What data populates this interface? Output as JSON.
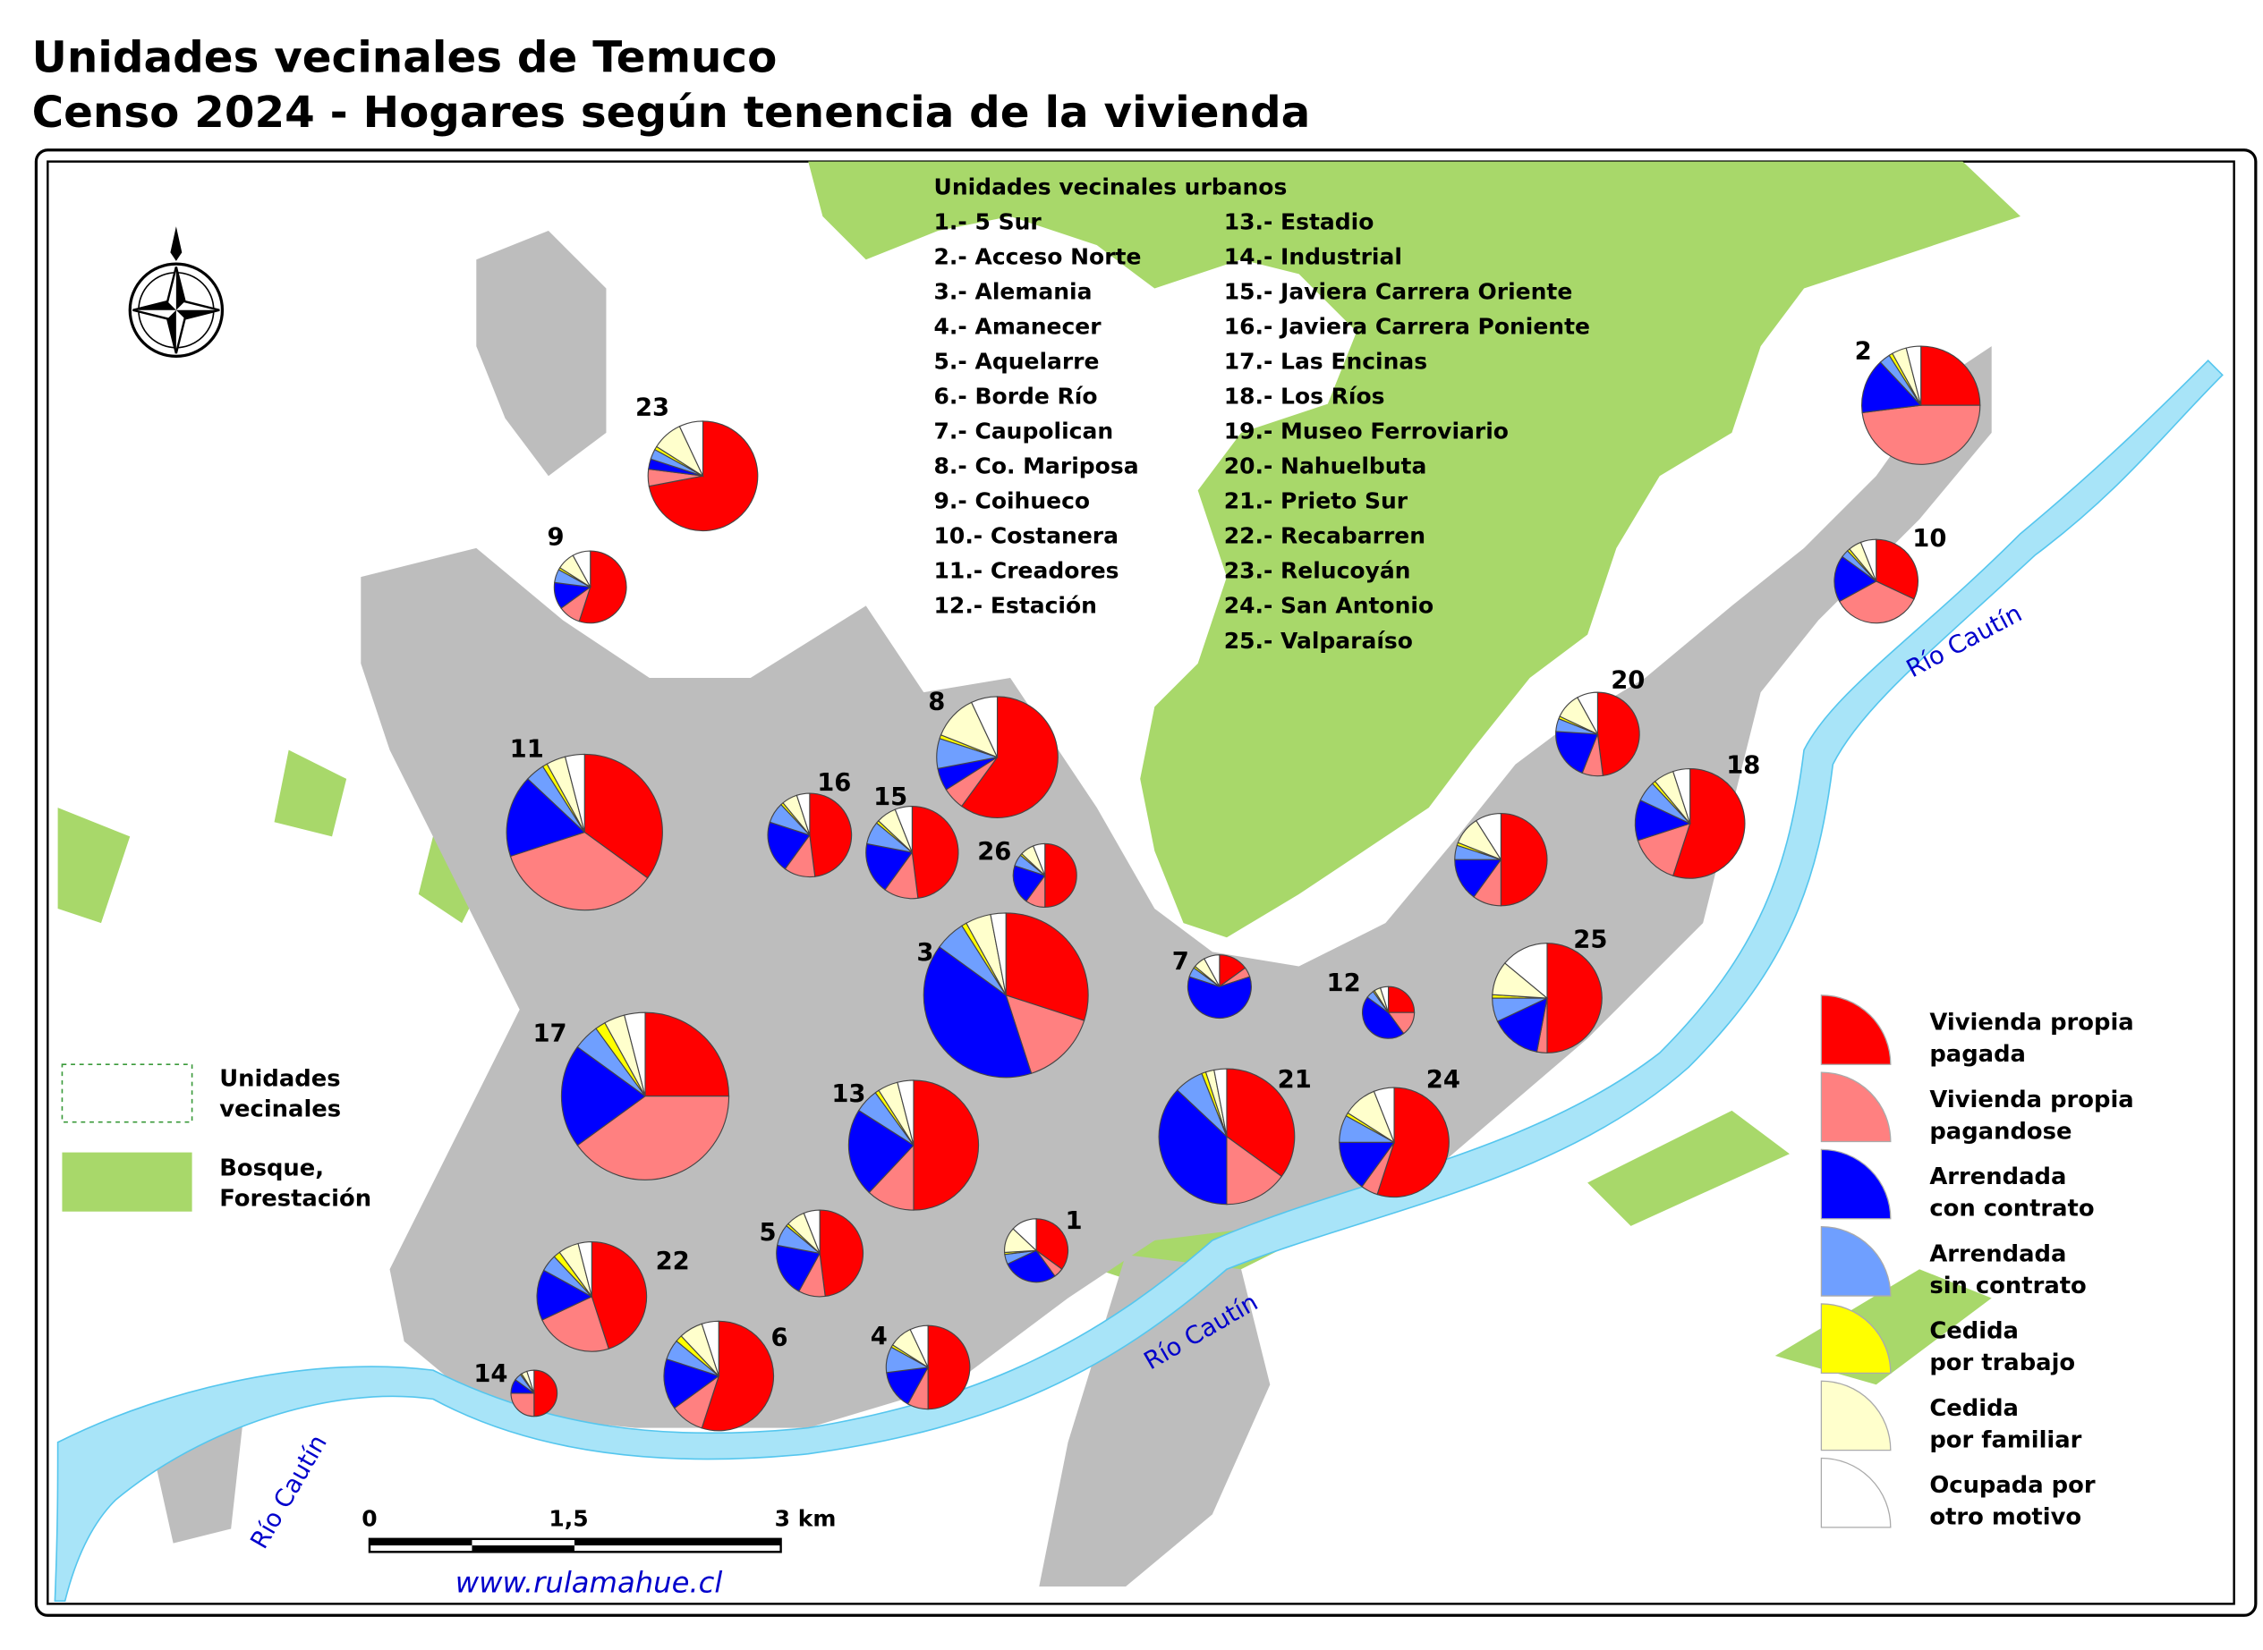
{
  "header": {
    "title_lines": [
      "Unidades vecinales de Temuco",
      "Censo 2024 - Hogares según tenencia de la vivienda"
    ]
  },
  "unit_list": {
    "heading": "Unidades vecinales urbanos",
    "items": [
      "1.-  5 Sur",
      "2.-  Acceso Norte",
      "3.-  Alemania",
      "4.-  Amanecer",
      "5.-  Aquelarre",
      "6.-  Borde Río",
      "7.-  Caupolican",
      "8.-  Co. Mariposa",
      "9.-  Coihueco",
      "10.- Costanera",
      "11.- Creadores",
      "12.- Estación",
      "13.-  Estadio",
      "14.-  Industrial",
      "15.-  Javiera Carrera Oriente",
      "16.-  Javiera Carrera Poniente",
      "17.-  Las Encinas",
      "18.-  Los Ríos",
      "19.-  Museo Ferroviario",
      "20.-  Nahuelbuta",
      "21.- Prieto Sur",
      "22.- Recabarren",
      "23.- Relucoyán",
      "24.- San Antonio",
      "25.- Valparaíso"
    ]
  },
  "map_legend": [
    {
      "lines": [
        "Unidades",
        "vecinales"
      ]
    },
    {
      "lines": [
        "Bosque,",
        "Forestación"
      ]
    }
  ],
  "tenure_legend": [
    {
      "lines": [
        "Vivienda propia",
        "pagada"
      ],
      "color": "#ff0000"
    },
    {
      "lines": [
        "Vivienda propia",
        "pagandose"
      ],
      "color": "#ff8080"
    },
    {
      "lines": [
        "Arrendada",
        "con contrato"
      ],
      "color": "#0000ff"
    },
    {
      "lines": [
        "Arrendada",
        "sin contrato"
      ],
      "color": "#6f9fff"
    },
    {
      "lines": [
        "Cedida",
        "por trabajo"
      ],
      "color": "#ffff00"
    },
    {
      "lines": [
        "Cedida",
        "por familiar"
      ],
      "color": "#ffffcc"
    },
    {
      "lines": [
        "Ocupada por",
        "otro motivo"
      ],
      "color": "#ffffff"
    }
  ],
  "pies": [
    {
      "label": "23",
      "values": [
        72,
        5,
        3,
        3,
        1,
        9,
        7
      ]
    },
    {
      "label": "9",
      "values": [
        55,
        10,
        12,
        6,
        1,
        8,
        8
      ]
    },
    {
      "label": "11",
      "values": [
        35,
        35,
        17,
        4,
        1,
        4,
        4
      ]
    },
    {
      "label": "16",
      "values": [
        48,
        12,
        20,
        8,
        1,
        6,
        5
      ]
    },
    {
      "label": "15",
      "values": [
        48,
        12,
        18,
        8,
        1,
        7,
        6
      ]
    },
    {
      "label": "8",
      "values": [
        60,
        6,
        6,
        8,
        1,
        12,
        7
      ]
    },
    {
      "label": "26",
      "values": [
        50,
        10,
        20,
        6,
        1,
        7,
        6
      ]
    },
    {
      "label": "3",
      "values": [
        30,
        15,
        40,
        6,
        1,
        5,
        3
      ]
    },
    {
      "label": "7",
      "values": [
        15,
        5,
        60,
        5,
        1,
        6,
        8
      ]
    },
    {
      "label": "12",
      "values": [
        25,
        15,
        45,
        5,
        1,
        4,
        5
      ]
    },
    {
      "label": "17",
      "values": [
        25,
        40,
        20,
        5,
        2,
        4,
        4
      ]
    },
    {
      "label": "13",
      "values": [
        50,
        12,
        22,
        6,
        1,
        5,
        4
      ]
    },
    {
      "label": "21",
      "values": [
        35,
        15,
        37,
        7,
        1,
        2,
        3
      ]
    },
    {
      "label": "24",
      "values": [
        55,
        5,
        15,
        8,
        1,
        10,
        6
      ]
    },
    {
      "label": "5",
      "values": [
        48,
        10,
        20,
        8,
        1,
        7,
        6
      ]
    },
    {
      "label": "1",
      "values": [
        35,
        5,
        28,
        5,
        1,
        13,
        13
      ]
    },
    {
      "label": "22",
      "values": [
        45,
        23,
        15,
        5,
        2,
        6,
        4
      ]
    },
    {
      "label": "6",
      "values": [
        55,
        10,
        15,
        6,
        2,
        7,
        5
      ]
    },
    {
      "label": "4",
      "values": [
        50,
        8,
        15,
        10,
        1,
        9,
        7
      ]
    },
    {
      "label": "14",
      "values": [
        50,
        25,
        10,
        5,
        1,
        4,
        5
      ]
    },
    {
      "label": "2",
      "values": [
        25,
        48,
        15,
        3,
        1,
        4,
        4
      ]
    },
    {
      "label": "10",
      "values": [
        32,
        35,
        18,
        3,
        1,
        5,
        6
      ]
    },
    {
      "label": "20",
      "values": [
        48,
        8,
        20,
        5,
        1,
        10,
        8
      ]
    },
    {
      "label": "18",
      "values": [
        55,
        15,
        12,
        6,
        1,
        6,
        5
      ]
    },
    {
      "label": null,
      "values": [
        50,
        10,
        15,
        5,
        1,
        10,
        9
      ]
    },
    {
      "label": "25",
      "values": [
        50,
        3,
        15,
        7,
        1,
        10,
        14
      ]
    }
  ],
  "scale": {
    "labels": [
      "0",
      "1,5",
      "3 km"
    ]
  },
  "rivers": [
    "Río Cautín",
    "Río Cautín",
    "Río Cautín"
  ],
  "website": "www.rulamahue.cl"
}
